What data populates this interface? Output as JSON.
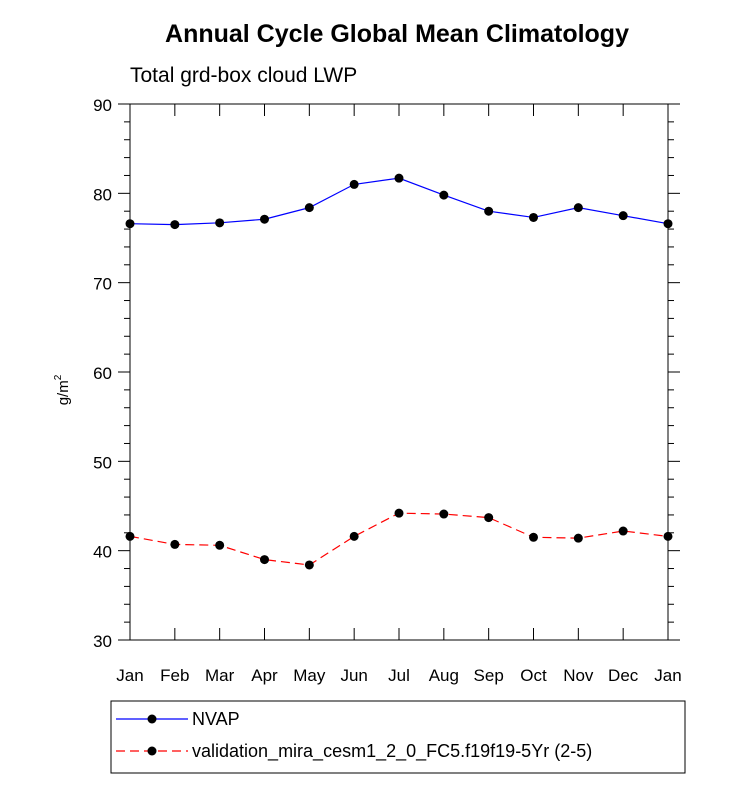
{
  "chart_data": {
    "type": "line",
    "title": "Annual Cycle Global Mean Climatology",
    "subtitle": "Total grd-box cloud LWP",
    "ylabel": "g/m",
    "ylabel_sup": "2",
    "xlabel": "",
    "ylim": [
      30,
      90
    ],
    "yticks": [
      "30",
      "40",
      "50",
      "60",
      "70",
      "80",
      "90"
    ],
    "categories": [
      "Jan",
      "Feb",
      "Mar",
      "Apr",
      "May",
      "Jun",
      "Jul",
      "Aug",
      "Sep",
      "Oct",
      "Nov",
      "Dec",
      "Jan"
    ],
    "series": [
      {
        "name": "NVAP",
        "color": "#0000ff",
        "dash": "solid",
        "values": [
          76.6,
          76.5,
          76.7,
          77.1,
          78.4,
          81.0,
          81.7,
          79.8,
          78.0,
          77.3,
          78.4,
          77.5,
          76.6
        ]
      },
      {
        "name": "validation_mira_cesm1_2_0_FC5.f19f19-5Yr (2-5)",
        "color": "#ff0000",
        "dash": "dashed",
        "values": [
          41.6,
          40.7,
          40.6,
          39.0,
          38.4,
          41.6,
          44.2,
          44.1,
          43.7,
          41.5,
          41.4,
          42.2,
          41.6
        ]
      }
    ]
  }
}
